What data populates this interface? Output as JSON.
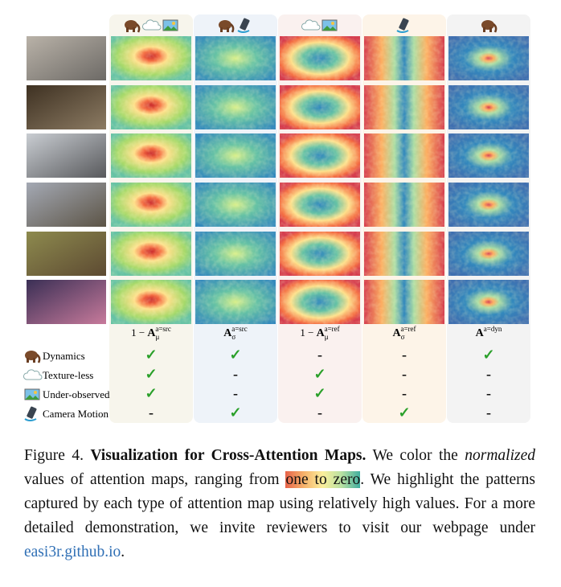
{
  "figure": {
    "columns": [
      {
        "prefix": "1 − ",
        "base": "A",
        "sub": "μ",
        "sup": "a=src"
      },
      {
        "base": "A",
        "sub": "σ",
        "sup": "a=src"
      },
      {
        "prefix": "1 − ",
        "base": "A",
        "sub": "μ",
        "sup": "a=ref"
      },
      {
        "base": "A",
        "sub": "σ",
        "sup": "a=ref"
      },
      {
        "base": "A",
        "sup": "a=dyn"
      }
    ],
    "table": {
      "rows": [
        {
          "name": "Dynamics",
          "cells": [
            "✓",
            "✓",
            "-",
            "-",
            "✓"
          ]
        },
        {
          "name": "Texture-less",
          "cells": [
            "✓",
            "-",
            "✓",
            "-",
            "-"
          ]
        },
        {
          "name": "Under-observed",
          "cells": [
            "✓",
            "-",
            "✓",
            "-",
            "-"
          ]
        },
        {
          "name": "Camera Motion",
          "cells": [
            "-",
            "✓",
            "-",
            "✓",
            "-"
          ]
        }
      ]
    }
  },
  "caption": {
    "segments": [
      {
        "text": "Figure 4. ",
        "style": "plain"
      },
      {
        "text": "Visualization for Cross-Attention Maps.",
        "style": "bold"
      },
      {
        "text": " We color the ",
        "style": "plain"
      },
      {
        "text": "normalized",
        "style": "italic"
      },
      {
        "text": " values of attention maps, ranging from ",
        "style": "plain"
      },
      {
        "text": "one to zero",
        "style": "highlight"
      },
      {
        "text": ". We highlight the patterns captured by each type of attention map using relatively high values. For a more detailed demonstration, we invite reviewers to visit our webpage under ",
        "style": "plain"
      },
      {
        "text": "easi3r.github.io",
        "style": "link"
      },
      {
        "text": ".",
        "style": "plain"
      }
    ]
  }
}
